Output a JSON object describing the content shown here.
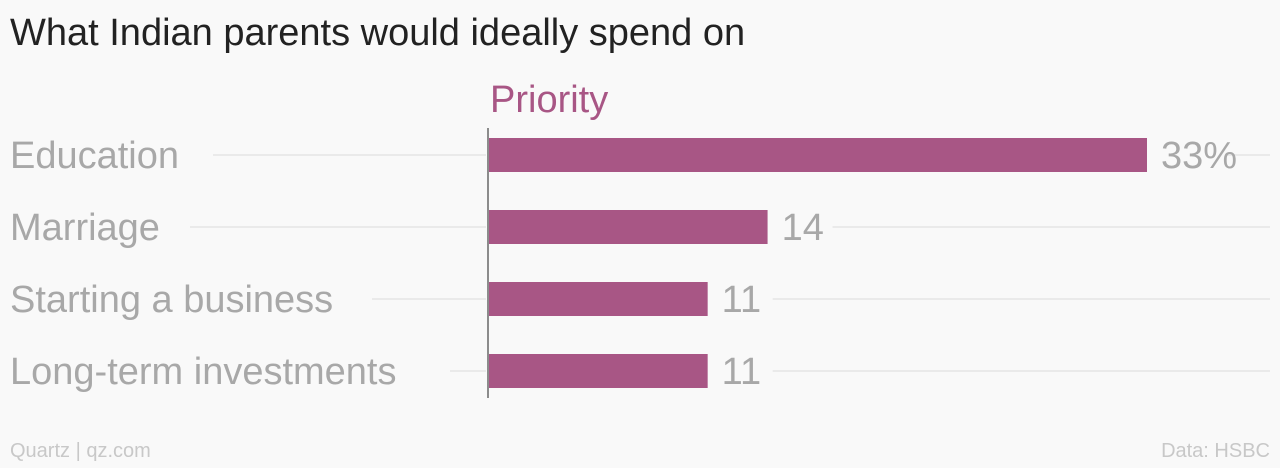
{
  "title": "What Indian parents would ideally spend on",
  "footer": {
    "source_left": "Quartz | qz.com",
    "source_right": "Data: HSBC"
  },
  "colors": {
    "bar": "#a85685",
    "series_label": "#a85685",
    "category_label": "#a8a8a8",
    "value_label": "#a8a8a8",
    "gridline": "#e6e6e6",
    "axis": "#8c8c8c"
  },
  "chart_data": {
    "type": "bar",
    "orientation": "horizontal",
    "categories": [
      "Education",
      "Marriage",
      "Starting a business",
      "Long-term investments"
    ],
    "series": [
      {
        "name": "Priority",
        "values": [
          33,
          14,
          11,
          11
        ]
      }
    ],
    "value_labels": [
      "33%",
      "14",
      "11",
      "11"
    ],
    "xlim": [
      0,
      33
    ],
    "grid": true,
    "legend": "top"
  }
}
